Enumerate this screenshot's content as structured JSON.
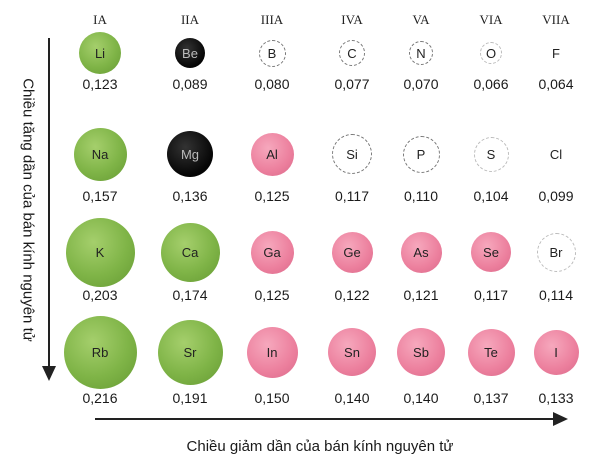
{
  "groups": [
    "IA",
    "IIA",
    "IIIA",
    "IVA",
    "VA",
    "VIA",
    "VIIA"
  ],
  "rows": [
    {
      "elements": [
        {
          "symbol": "Li",
          "radius": "0,123",
          "style": "green"
        },
        {
          "symbol": "Be",
          "radius": "0,089",
          "style": "black"
        },
        {
          "symbol": "B",
          "radius": "0,080",
          "style": "white"
        },
        {
          "symbol": "C",
          "radius": "0,077",
          "style": "white"
        },
        {
          "symbol": "N",
          "radius": "0,070",
          "style": "white"
        },
        {
          "symbol": "O",
          "radius": "0,066",
          "style": "light"
        },
        {
          "symbol": "F",
          "radius": "0,064",
          "style": "plain"
        }
      ]
    },
    {
      "elements": [
        {
          "symbol": "Na",
          "radius": "0,157",
          "style": "green"
        },
        {
          "symbol": "Mg",
          "radius": "0,136",
          "style": "black"
        },
        {
          "symbol": "Al",
          "radius": "0,125",
          "style": "pink"
        },
        {
          "symbol": "Si",
          "radius": "0,117",
          "style": "white"
        },
        {
          "symbol": "P",
          "radius": "0,110",
          "style": "white"
        },
        {
          "symbol": "S",
          "radius": "0,104",
          "style": "light"
        },
        {
          "symbol": "Cl",
          "radius": "0,099",
          "style": "plain"
        }
      ]
    },
    {
      "elements": [
        {
          "symbol": "K",
          "radius": "0,203",
          "style": "green"
        },
        {
          "symbol": "Ca",
          "radius": "0,174",
          "style": "green"
        },
        {
          "symbol": "Ga",
          "radius": "0,125",
          "style": "pink"
        },
        {
          "symbol": "Ge",
          "radius": "0,122",
          "style": "pink"
        },
        {
          "symbol": "As",
          "radius": "0,121",
          "style": "pink"
        },
        {
          "symbol": "Se",
          "radius": "0,117",
          "style": "pink"
        },
        {
          "symbol": "Br",
          "radius": "0,114",
          "style": "light"
        }
      ]
    },
    {
      "elements": [
        {
          "symbol": "Rb",
          "radius": "0,216",
          "style": "green"
        },
        {
          "symbol": "Sr",
          "radius": "0,191",
          "style": "green"
        },
        {
          "symbol": "In",
          "radius": "0,150",
          "style": "pink"
        },
        {
          "symbol": "Sn",
          "radius": "0,140",
          "style": "pink"
        },
        {
          "symbol": "Sb",
          "radius": "0,140",
          "style": "pink"
        },
        {
          "symbol": "Te",
          "radius": "0,137",
          "style": "pink"
        },
        {
          "symbol": "I",
          "radius": "0,133",
          "style": "pink"
        }
      ]
    }
  ],
  "vertical_axis_label": "Chiều tăng dần của bán kính nguyên tử",
  "horizontal_axis_label": "Chiều giảm dần của bán kính nguyên tử"
}
